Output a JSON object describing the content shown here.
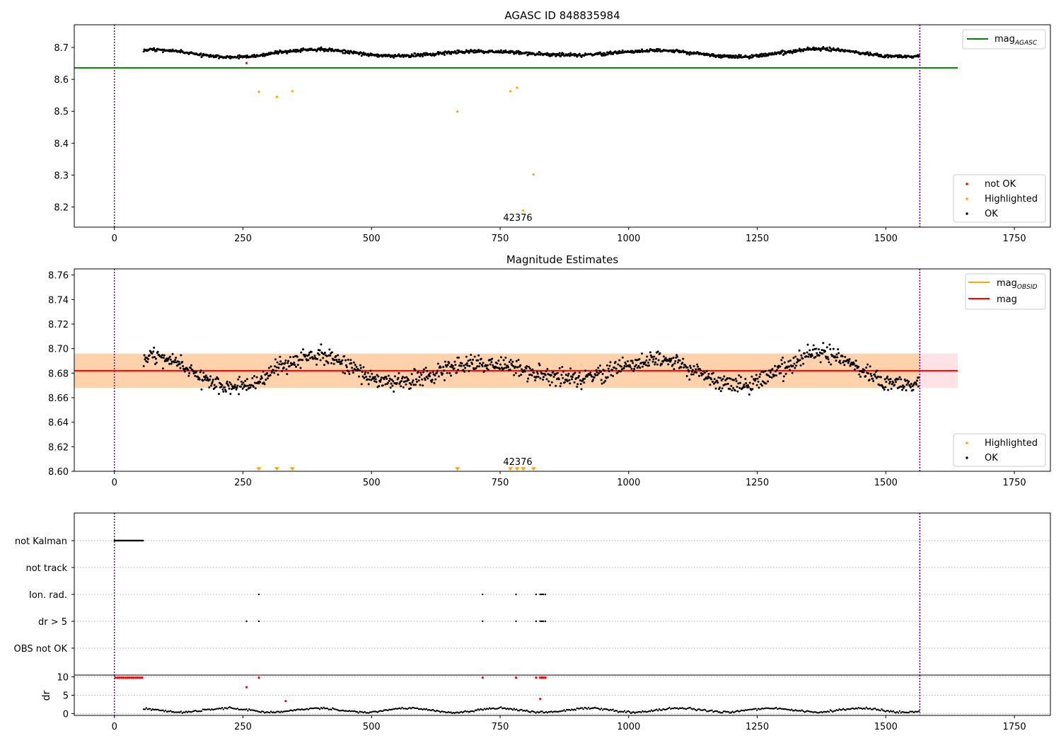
{
  "chart_data": [
    {
      "type": "scatter",
      "title": "AGASC ID 848835984",
      "xlim": [
        -78,
        1820
      ],
      "ylim": [
        8.137,
        8.771
      ],
      "xticks": [
        0,
        250,
        500,
        750,
        1000,
        1250,
        1500,
        1750
      ],
      "yticks": [
        8.2,
        8.3,
        8.4,
        8.5,
        8.6,
        8.7
      ],
      "ytick_decimals": 1,
      "vlines": [
        0,
        1566
      ],
      "hline": {
        "y": 8.636,
        "x": [
          -78,
          1640
        ],
        "color": "#008000"
      },
      "legend_lines": [
        {
          "label": "mag",
          "sub": "AGASC",
          "color": "#008000"
        }
      ],
      "legend_points": [
        {
          "label": "not OK",
          "color": "#ff0000"
        },
        {
          "label": "Highlighted",
          "color": "#ffa500"
        },
        {
          "label": "OK",
          "color": "#000000"
        }
      ],
      "annotation": {
        "text": "42376",
        "x": 784,
        "y": 8.165
      },
      "series": [
        {
          "name": "OK",
          "color": "#000000",
          "kind": "wave",
          "x_range": [
            57,
            1565
          ],
          "step": 1.25,
          "mean": 8.682,
          "amp": 0.013,
          "noise": 0.005,
          "phase": 0.3
        },
        {
          "name": "not OK",
          "color": "#ff0000",
          "points": [
            [
              257,
              8.651
            ]
          ]
        },
        {
          "name": "Highlighted",
          "color": "#ffa500",
          "points": [
            [
              281,
              8.561
            ],
            [
              316,
              8.545
            ],
            [
              346,
              8.563
            ],
            [
              667,
              8.499
            ],
            [
              770,
              8.563
            ],
            [
              783,
              8.574
            ],
            [
              795,
              8.189
            ],
            [
              815,
              8.302
            ]
          ]
        }
      ]
    },
    {
      "type": "scatter",
      "title": "Magnitude Estimates",
      "xlim": [
        -78,
        1820
      ],
      "ylim": [
        8.6,
        8.765
      ],
      "xticks": [
        0,
        250,
        500,
        750,
        1000,
        1250,
        1500,
        1750
      ],
      "yticks": [
        8.6,
        8.62,
        8.64,
        8.66,
        8.68,
        8.7,
        8.72,
        8.74,
        8.76
      ],
      "ytick_decimals": 2,
      "vlines": [
        0,
        1566
      ],
      "bands": [
        {
          "y": [
            8.668,
            8.696
          ],
          "x": [
            -78,
            1640
          ],
          "color": "#ffb6c1",
          "opacity": 0.4
        },
        {
          "y": [
            8.668,
            8.696
          ],
          "x": [
            -78,
            1566
          ],
          "color": "#ffa500",
          "opacity": 0.25
        }
      ],
      "hline": {
        "y": 8.682,
        "x": [
          -78,
          1640
        ],
        "color": "#ff0000"
      },
      "legend_lines": [
        {
          "label": "mag",
          "sub": "OBSID",
          "color": "#ffa500"
        },
        {
          "label": "mag",
          "sub": "",
          "color": "#ff0000"
        }
      ],
      "legend_points": [
        {
          "label": "Highlighted",
          "color": "#ffa500"
        },
        {
          "label": "OK",
          "color": "#000000"
        }
      ],
      "annotation": {
        "text": "42376",
        "x": 784,
        "y": 8.604
      },
      "series": [
        {
          "name": "OK",
          "color": "#000000",
          "kind": "wave",
          "x_range": [
            57,
            1565
          ],
          "step": 1.25,
          "mean": 8.682,
          "amp": 0.014,
          "noise": 0.007,
          "phase": 0.3
        },
        {
          "name": "Highlighted",
          "color": "#ffa500",
          "marker": "triangle",
          "points": [
            [
              281,
              8.601
            ],
            [
              316,
              8.601
            ],
            [
              346,
              8.601
            ],
            [
              667,
              8.601
            ],
            [
              770,
              8.601
            ],
            [
              783,
              8.601
            ],
            [
              795,
              8.601
            ],
            [
              815,
              8.601
            ]
          ]
        }
      ]
    },
    {
      "type": "scatter",
      "title": "",
      "xlim": [
        -78,
        1820
      ],
      "vlines": [
        0,
        1566
      ],
      "flags": [
        {
          "label": "not Kalman",
          "ranges": [
            [
              0,
              57
            ]
          ],
          "points": []
        },
        {
          "label": "not track",
          "ranges": [],
          "points": []
        },
        {
          "label": "Ion. rad.",
          "ranges": [],
          "points": [
            281,
            716,
            781,
            820,
            828,
            831,
            834,
            838
          ]
        },
        {
          "label": "dr > 5",
          "ranges": [],
          "points": [
            257,
            281,
            716,
            781,
            820,
            828,
            831,
            834,
            838
          ]
        },
        {
          "label": "OBS not OK",
          "ranges": [],
          "points": []
        }
      ]
    },
    {
      "type": "scatter",
      "title": "",
      "ylabel": "dr",
      "xlim": [
        -78,
        1820
      ],
      "ylim": [
        -0.5,
        10.5
      ],
      "xticks": [
        0,
        250,
        500,
        750,
        1000,
        1250,
        1500,
        1750
      ],
      "yticks": [
        0,
        5,
        10
      ],
      "vlines": [
        0,
        1566
      ],
      "series": [
        {
          "name": "OK",
          "color": "#000000",
          "kind": "drwave",
          "x_range": [
            57,
            1565
          ],
          "step": 2.5
        },
        {
          "name": "not OK",
          "color": "#ff0000",
          "points": [
            [
              2,
              9.8
            ],
            [
              6,
              9.8
            ],
            [
              10,
              9.8
            ],
            [
              14,
              9.8
            ],
            [
              18,
              9.8
            ],
            [
              22,
              9.8
            ],
            [
              26,
              9.8
            ],
            [
              30,
              9.8
            ],
            [
              34,
              9.8
            ],
            [
              38,
              9.8
            ],
            [
              42,
              9.8
            ],
            [
              46,
              9.8
            ],
            [
              50,
              9.8
            ],
            [
              54,
              9.8
            ],
            [
              257,
              7.2
            ],
            [
              281,
              9.8
            ],
            [
              333,
              3.4
            ],
            [
              716,
              9.8
            ],
            [
              781,
              9.8
            ],
            [
              820,
              9.8
            ],
            [
              828,
              9.8
            ],
            [
              831,
              9.8
            ],
            [
              834,
              9.8
            ],
            [
              838,
              9.8
            ],
            [
              828,
              4.0
            ]
          ]
        }
      ]
    }
  ]
}
